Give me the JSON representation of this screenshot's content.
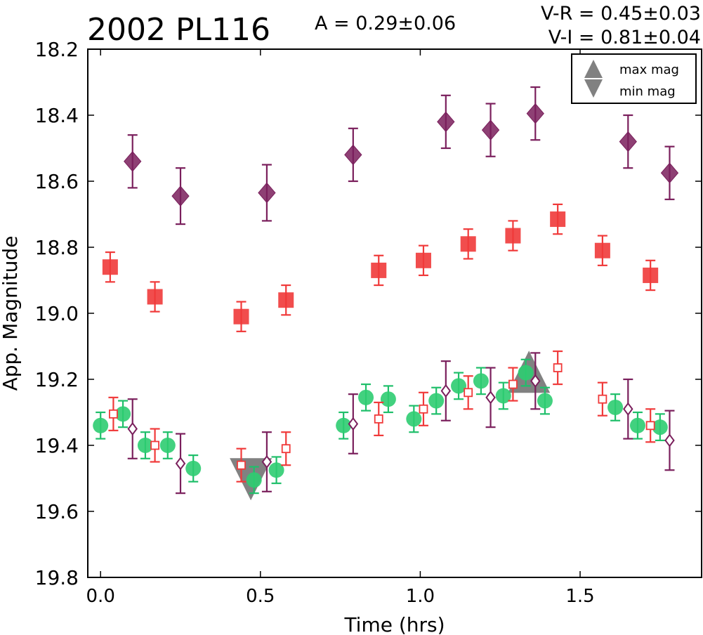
{
  "header": {
    "title": "2002 PL116",
    "amplitude": "A  = 0.29±0.06",
    "vr": "V-R = 0.45±0.03",
    "vi": "V-I  = 0.81±0.04"
  },
  "legend": {
    "items": [
      {
        "label": "max mag",
        "marker": "triangle-up"
      },
      {
        "label": "min mag",
        "marker": "triangle-down"
      }
    ]
  },
  "colors": {
    "purple": "#7a1f5c",
    "red": "#f03a3a",
    "green": "#2ecc71",
    "green_err": "#1fbf6a",
    "gray": "#6b6b6b"
  },
  "chart_data": {
    "type": "scatter",
    "title": "2002 PL116",
    "xlabel": "Time (hrs)",
    "ylabel": "App. Magnitude",
    "xlim": [
      -0.04,
      1.88
    ],
    "ylim": [
      19.8,
      18.2
    ],
    "y_inverted": true,
    "xticks": [
      0.0,
      0.5,
      1.0,
      1.5
    ],
    "xtick_labels": [
      "0.0",
      "0.5",
      "1.0",
      "1.5"
    ],
    "yticks": [
      18.2,
      18.4,
      18.6,
      18.8,
      19.0,
      19.2,
      19.4,
      19.6,
      19.8
    ],
    "ytick_labels": [
      "18.2",
      "18.4",
      "18.6",
      "18.8",
      "19.0",
      "19.2",
      "19.4",
      "19.6",
      "19.8"
    ],
    "grid": false,
    "legend_position": "top-right",
    "series": [
      {
        "marker": "diamond-filled",
        "color": "#7a1f5c",
        "points": [
          [
            0.1,
            18.54,
            0.08
          ],
          [
            0.25,
            18.645,
            0.085
          ],
          [
            0.52,
            18.635,
            0.085
          ],
          [
            0.79,
            18.52,
            0.08
          ],
          [
            1.08,
            18.42,
            0.08
          ],
          [
            1.22,
            18.445,
            0.08
          ],
          [
            1.36,
            18.395,
            0.08
          ],
          [
            1.65,
            18.48,
            0.08
          ],
          [
            1.78,
            18.575,
            0.08
          ]
        ]
      },
      {
        "marker": "square-filled",
        "color": "#f03a3a",
        "points": [
          [
            0.03,
            18.86,
            0.045
          ],
          [
            0.17,
            18.95,
            0.045
          ],
          [
            0.44,
            19.01,
            0.045
          ],
          [
            0.58,
            18.96,
            0.045
          ],
          [
            0.87,
            18.87,
            0.045
          ],
          [
            1.01,
            18.84,
            0.045
          ],
          [
            1.15,
            18.79,
            0.045
          ],
          [
            1.29,
            18.765,
            0.045
          ],
          [
            1.43,
            18.715,
            0.045
          ],
          [
            1.57,
            18.81,
            0.045
          ],
          [
            1.72,
            18.885,
            0.045
          ]
        ]
      },
      {
        "marker": "circle-filled",
        "color": "#2ecc71",
        "points": [
          [
            0.0,
            19.34,
            0.04
          ],
          [
            0.07,
            19.305,
            0.04
          ],
          [
            0.14,
            19.4,
            0.04
          ],
          [
            0.21,
            19.4,
            0.04
          ],
          [
            0.29,
            19.47,
            0.04
          ],
          [
            0.48,
            19.505,
            0.04
          ],
          [
            0.55,
            19.475,
            0.04
          ],
          [
            0.76,
            19.34,
            0.04
          ],
          [
            0.83,
            19.255,
            0.04
          ],
          [
            0.9,
            19.26,
            0.04
          ],
          [
            0.98,
            19.32,
            0.04
          ],
          [
            1.05,
            19.265,
            0.04
          ],
          [
            1.12,
            19.22,
            0.04
          ],
          [
            1.19,
            19.205,
            0.04
          ],
          [
            1.26,
            19.25,
            0.04
          ],
          [
            1.33,
            19.18,
            0.04
          ],
          [
            1.39,
            19.265,
            0.04
          ],
          [
            1.61,
            19.285,
            0.04
          ],
          [
            1.68,
            19.34,
            0.04
          ],
          [
            1.75,
            19.345,
            0.04
          ]
        ]
      },
      {
        "marker": "square-open",
        "color": "#f03a3a",
        "points": [
          [
            0.04,
            19.305,
            0.05
          ],
          [
            0.17,
            19.4,
            0.05
          ],
          [
            0.44,
            19.46,
            0.05
          ],
          [
            0.58,
            19.41,
            0.05
          ],
          [
            0.87,
            19.32,
            0.05
          ],
          [
            1.01,
            19.29,
            0.05
          ],
          [
            1.15,
            19.24,
            0.05
          ],
          [
            1.29,
            19.215,
            0.05
          ],
          [
            1.43,
            19.165,
            0.05
          ],
          [
            1.57,
            19.26,
            0.05
          ],
          [
            1.72,
            19.34,
            0.05
          ]
        ]
      },
      {
        "marker": "diamond-open",
        "color": "#7a1f5c",
        "points": [
          [
            0.1,
            19.35,
            0.09
          ],
          [
            0.25,
            19.455,
            0.09
          ],
          [
            0.52,
            19.45,
            0.09
          ],
          [
            0.79,
            19.335,
            0.09
          ],
          [
            1.08,
            19.235,
            0.09
          ],
          [
            1.22,
            19.255,
            0.09
          ],
          [
            1.36,
            19.205,
            0.085
          ],
          [
            1.65,
            19.29,
            0.09
          ],
          [
            1.78,
            19.385,
            0.09
          ]
        ]
      },
      {
        "marker": "triangle-up",
        "color": "#6b6b6b",
        "label": "max mag",
        "points": [
          [
            1.34,
            19.19
          ]
        ]
      },
      {
        "marker": "triangle-down",
        "color": "#6b6b6b",
        "label": "min mag",
        "points": [
          [
            0.47,
            19.49
          ]
        ]
      }
    ]
  }
}
